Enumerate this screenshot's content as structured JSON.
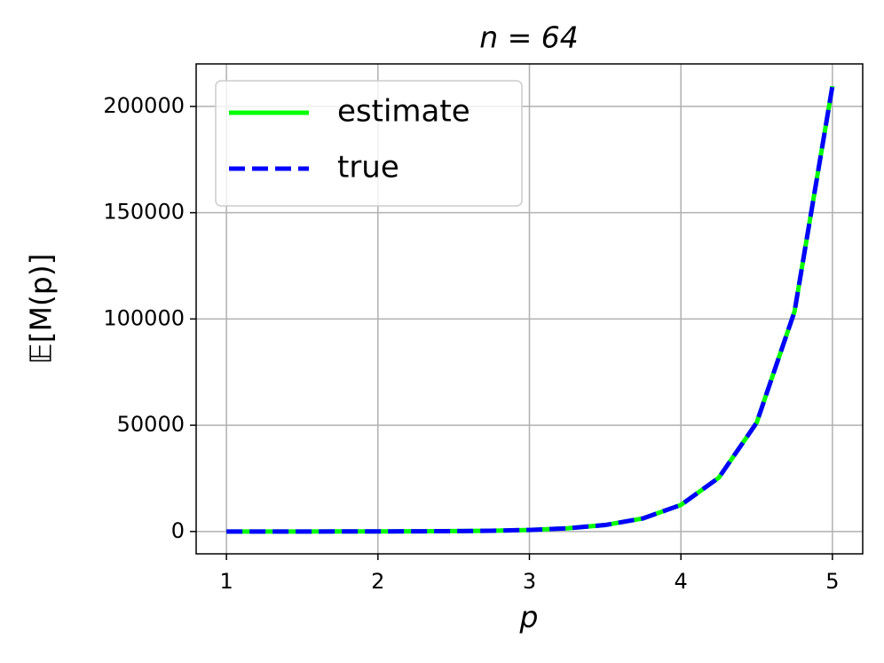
{
  "chart_data": {
    "type": "line",
    "title": "n = 64",
    "x_label": "p",
    "y_label": "𝔼[M(p)]",
    "x": [
      1,
      1.25,
      1.5,
      1.75,
      2,
      2.25,
      2.5,
      2.75,
      3,
      3.25,
      3.5,
      3.75,
      4,
      4.25,
      4.5,
      4.75,
      5
    ],
    "series": [
      {
        "name": "estimate",
        "color": "#00ff00",
        "dash": "solid",
        "values": [
          2.65,
          5.4,
          10.9,
          22,
          44.5,
          90,
          182,
          369,
          746,
          1509,
          3053,
          6176,
          12500,
          25300,
          51190,
          103500,
          209500
        ]
      },
      {
        "name": "true",
        "color": "#0000ff",
        "dash": "dashed",
        "values": [
          2.65,
          5.4,
          10.9,
          22,
          44.5,
          90,
          182,
          369,
          746,
          1509,
          3053,
          6176,
          12500,
          25300,
          51190,
          103500,
          209500
        ]
      }
    ],
    "xlim": [
      0.8,
      5.2
    ],
    "xticks": [
      1,
      2,
      3,
      4,
      5
    ],
    "ylim": [
      -10500,
      220000
    ],
    "yticks": [
      0,
      50000,
      100000,
      150000,
      200000
    ],
    "grid": true,
    "legend": "upper-left"
  }
}
